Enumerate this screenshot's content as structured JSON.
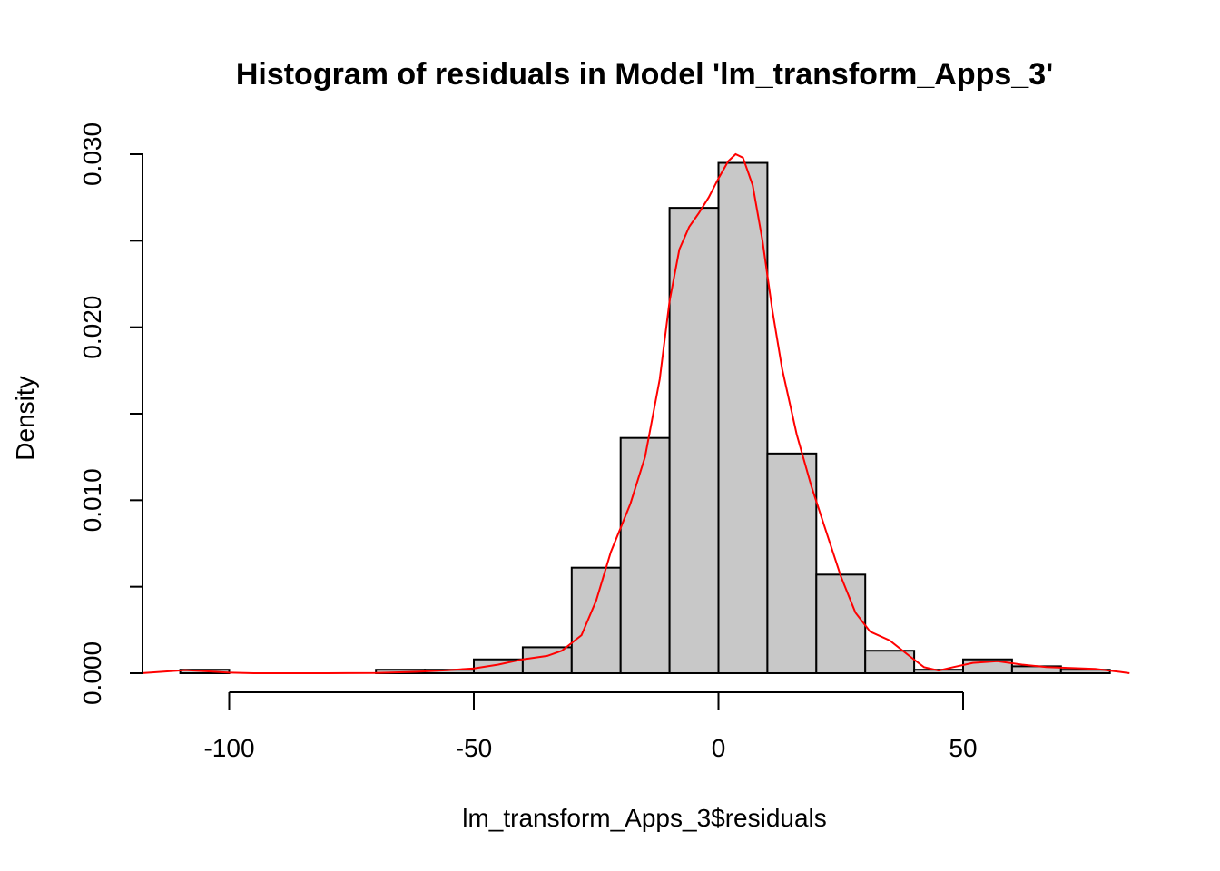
{
  "chart_data": {
    "type": "bar",
    "title": "Histogram of residuals in Model 'lm_transform_Apps_3'",
    "xlabel": "lm_transform_Apps_3$residuals",
    "ylabel": "Density",
    "xlim": [
      -118,
      84
    ],
    "ylim": [
      0,
      0.03
    ],
    "x_ticks": [
      -100,
      -50,
      0,
      50
    ],
    "x_tick_labels": [
      "-100",
      "-50",
      "0",
      "50"
    ],
    "y_ticks": [
      0,
      0.005,
      0.01,
      0.015,
      0.02,
      0.025,
      0.03
    ],
    "y_tick_labels": [
      "0.000",
      "",
      "0.010",
      "",
      "0.020",
      "",
      "0.030"
    ],
    "bins": [
      {
        "start": -110,
        "end": -100,
        "density": 0.0002
      },
      {
        "start": -100,
        "end": -90,
        "density": 0
      },
      {
        "start": -90,
        "end": -80,
        "density": 0
      },
      {
        "start": -80,
        "end": -70,
        "density": 0
      },
      {
        "start": -70,
        "end": -60,
        "density": 0.0002
      },
      {
        "start": -60,
        "end": -50,
        "density": 0.0002
      },
      {
        "start": -50,
        "end": -40,
        "density": 0.0008
      },
      {
        "start": -40,
        "end": -30,
        "density": 0.0015
      },
      {
        "start": -30,
        "end": -20,
        "density": 0.0061
      },
      {
        "start": -20,
        "end": -10,
        "density": 0.0136
      },
      {
        "start": -10,
        "end": 0,
        "density": 0.0269
      },
      {
        "start": 0,
        "end": 10,
        "density": 0.0295
      },
      {
        "start": 10,
        "end": 20,
        "density": 0.0127
      },
      {
        "start": 20,
        "end": 30,
        "density": 0.0057
      },
      {
        "start": 30,
        "end": 40,
        "density": 0.0013
      },
      {
        "start": 40,
        "end": 50,
        "density": 0.0002
      },
      {
        "start": 50,
        "end": 60,
        "density": 0.0008
      },
      {
        "start": 60,
        "end": 70,
        "density": 0.0004
      },
      {
        "start": 70,
        "end": 80,
        "density": 0.0002
      }
    ],
    "density_curve": {
      "color": "#ff0000",
      "x": [
        -118,
        -113,
        -109,
        -105,
        -100,
        -95,
        -90,
        -80,
        -70,
        -62,
        -55,
        -50,
        -45,
        -40,
        -35,
        -32,
        -28,
        -25,
        -22,
        -18,
        -15,
        -12,
        -10,
        -8,
        -6,
        -4,
        -2,
        0,
        2,
        3.5,
        5,
        7,
        9,
        11,
        13,
        16,
        19,
        22,
        25,
        28,
        31,
        35,
        39,
        42,
        45,
        48,
        52,
        57,
        62,
        67,
        72,
        77,
        82,
        84
      ],
      "y": [
        0,
        0.0001,
        0.00018,
        0.00012,
        3e-05,
        0,
        0,
        0,
        1e-05,
        8e-05,
        0.00018,
        0.00028,
        0.0005,
        0.0008,
        0.001,
        0.0013,
        0.0022,
        0.0042,
        0.007,
        0.0098,
        0.0125,
        0.017,
        0.0215,
        0.0245,
        0.0258,
        0.0266,
        0.0275,
        0.0286,
        0.0296,
        0.03,
        0.0298,
        0.0282,
        0.025,
        0.021,
        0.0176,
        0.0138,
        0.0108,
        0.0082,
        0.0056,
        0.0035,
        0.0024,
        0.0019,
        0.001,
        0.00035,
        0.00015,
        0.00035,
        0.0006,
        0.0007,
        0.0005,
        0.00035,
        0.0003,
        0.00025,
        8e-05,
        0
      ]
    }
  }
}
